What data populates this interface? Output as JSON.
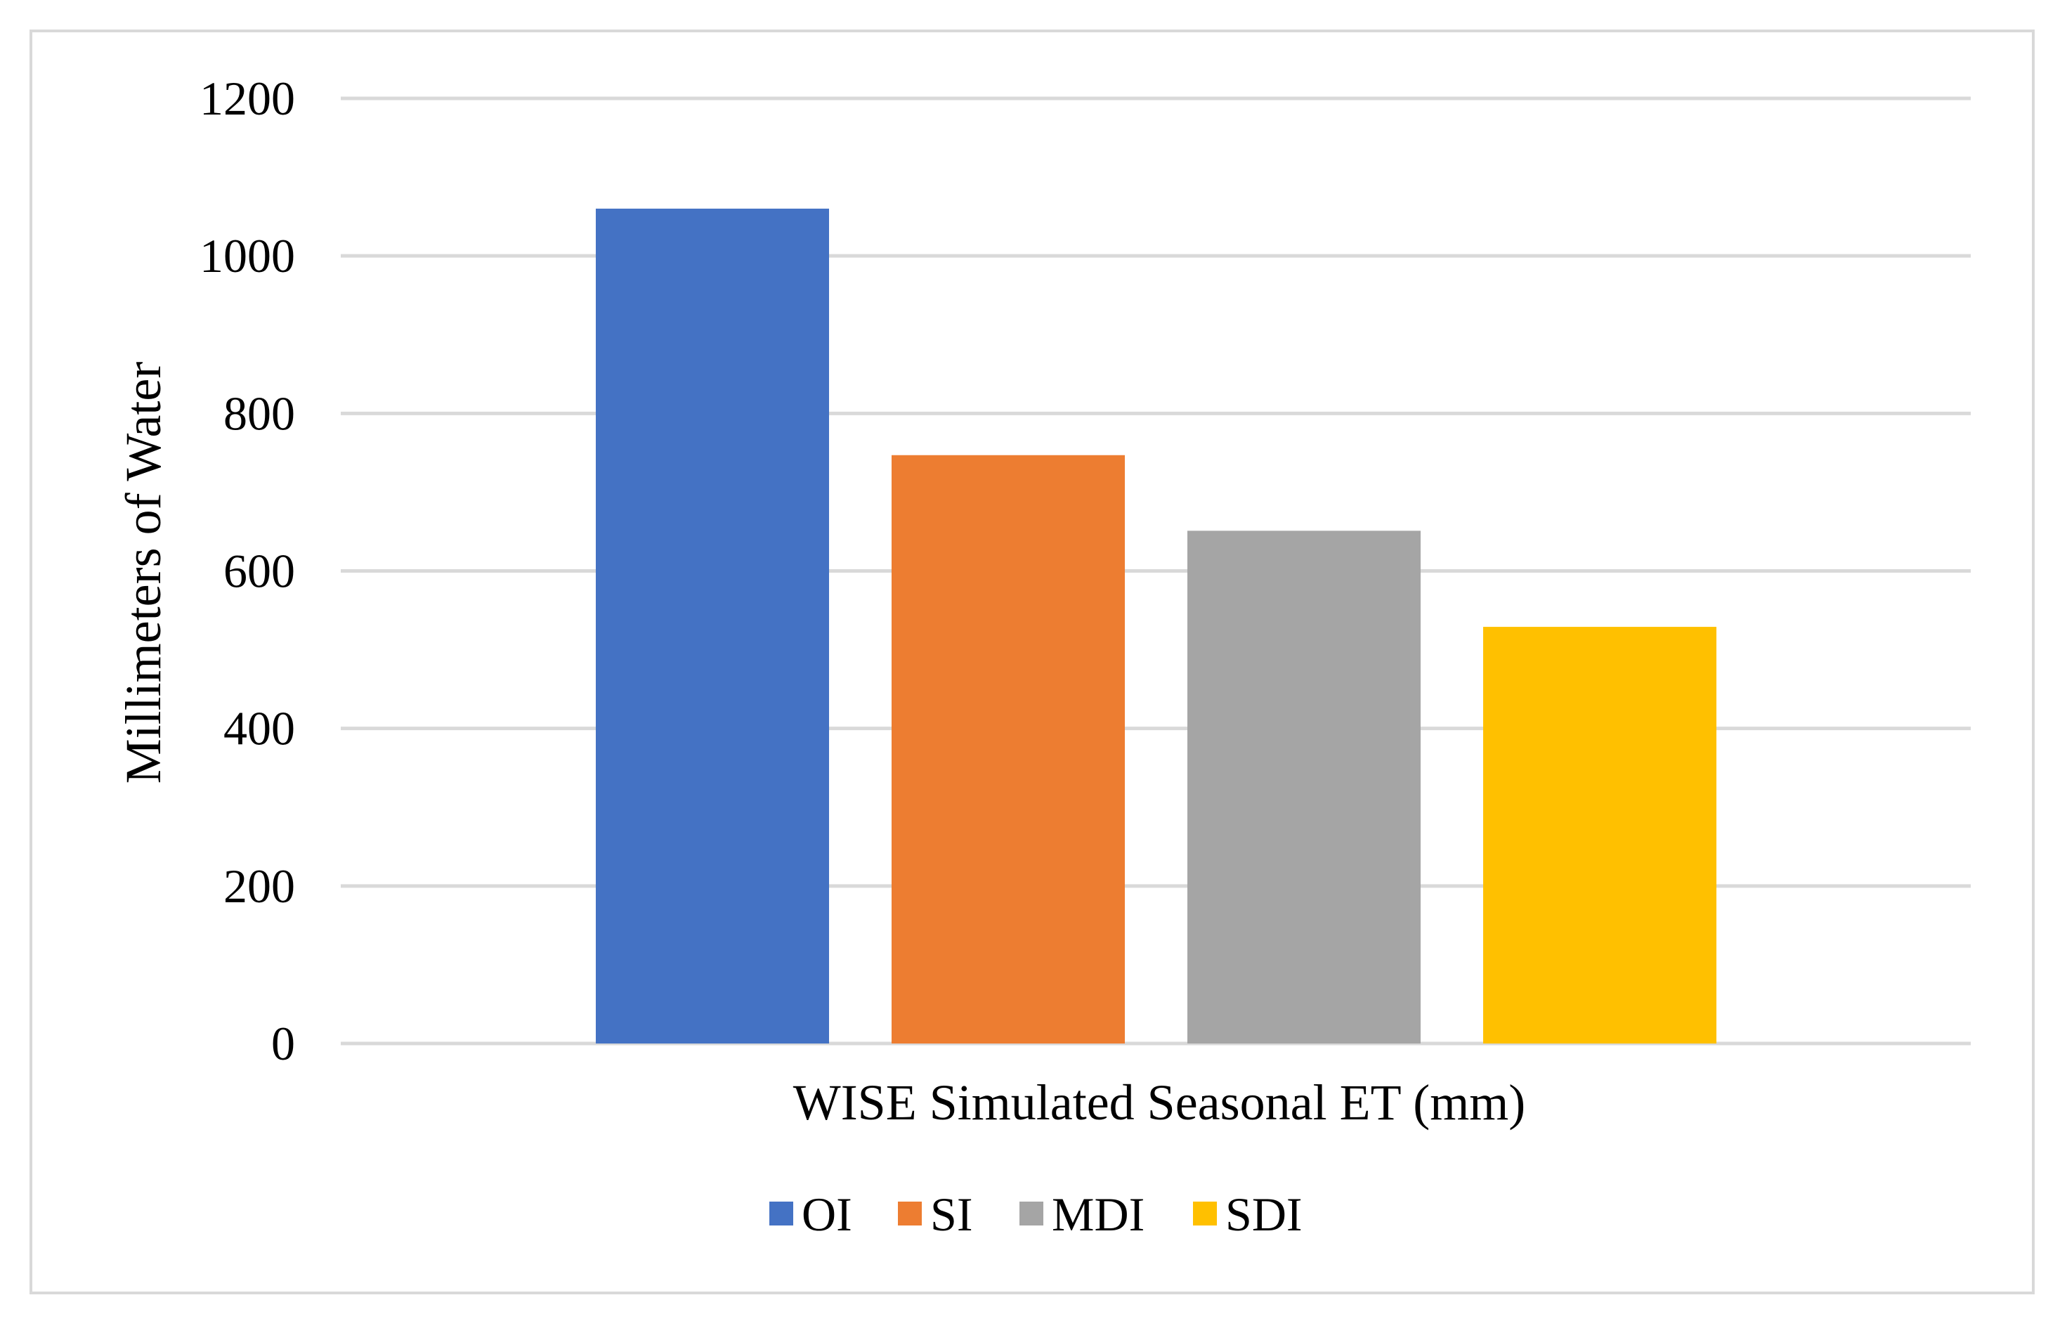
{
  "chart_data": {
    "type": "bar",
    "title": "",
    "xlabel": "WISE Simulated Seasonal ET (mm)",
    "ylabel": "Millimeters of Water",
    "categories": [
      "WISE Simulated Seasonal ET (mm)"
    ],
    "series": [
      {
        "name": "OI",
        "values": [
          1060
        ],
        "color": "#4472C4"
      },
      {
        "name": "SI",
        "values": [
          747
        ],
        "color": "#ED7D31"
      },
      {
        "name": "MDI",
        "values": [
          651
        ],
        "color": "#A5A5A5"
      },
      {
        "name": "SDI",
        "values": [
          529
        ],
        "color": "#FFC000"
      }
    ],
    "ylim": [
      0,
      1200
    ],
    "yticks": [
      0,
      200,
      400,
      600,
      800,
      1000,
      1200
    ],
    "grid": true,
    "legend_position": "bottom"
  }
}
